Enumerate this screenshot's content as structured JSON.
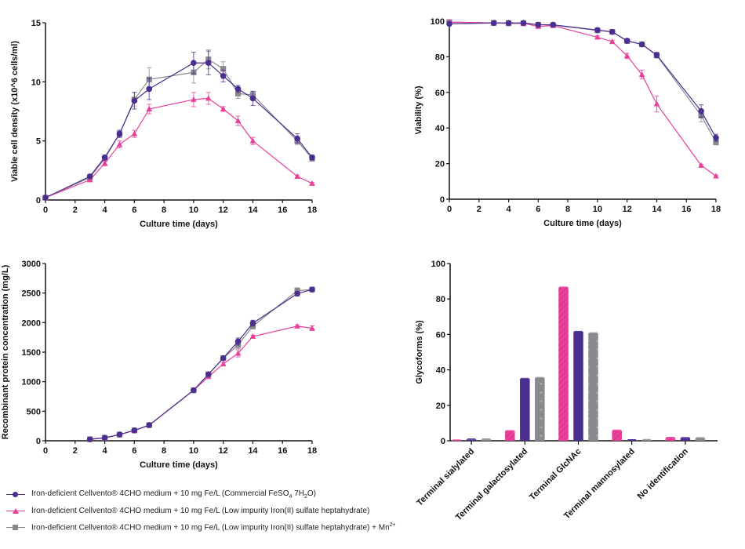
{
  "colors": {
    "commercial": "#4b2e8f",
    "low_impurity": "#e8409a",
    "low_impurity_mn": "#8a8a8e",
    "axis": "#111111"
  },
  "legend": [
    {
      "key": "commercial",
      "marker": "circle",
      "text": "Iron-deficient Cellvento® 4CHO medium + 10 mg Fe/L (Commercial FeSO",
      "sub1": "4",
      "mid": " 7H",
      "sub2": "2",
      "tail": "O)"
    },
    {
      "key": "low_impurity",
      "marker": "triangle",
      "text": "Iron-deficient Cellvento® 4CHO medium + 10 mg Fe/L (Low impurity Iron(II) sulfate heptahydrate)"
    },
    {
      "key": "low_impurity_mn",
      "marker": "square",
      "text": "Iron-deficient Cellvento® 4CHO medium + 10 mg Fe/L (Low impurity Iron(II) sulfate heptahydrate) + Mn",
      "sup": "2+"
    }
  ],
  "chart_data": [
    {
      "id": "vcd",
      "type": "line",
      "title": "",
      "xlabel": "Culture time (days)",
      "ylabel": "Viable cell density (x10^6 cells/ml)",
      "xlim": [
        0,
        18
      ],
      "ylim": [
        0,
        15
      ],
      "xticks": [
        0,
        2,
        4,
        6,
        8,
        10,
        12,
        14,
        16,
        18
      ],
      "yticks": [
        0,
        5,
        10,
        15
      ],
      "x": [
        0,
        3,
        4,
        5,
        6,
        7,
        10,
        11,
        12,
        13,
        14,
        17,
        18
      ],
      "series": [
        {
          "key": "low_impurity_mn",
          "marker": "square",
          "values": [
            0.2,
            1.9,
            3.5,
            5.6,
            8.5,
            10.2,
            10.8,
            11.9,
            11.1,
            9.0,
            8.9,
            5.0,
            3.5
          ],
          "err": [
            0.1,
            0.15,
            0.2,
            0.3,
            0.6,
            1.0,
            0.9,
            0.8,
            0.6,
            0.4,
            0.3,
            0.3,
            0.2
          ]
        },
        {
          "key": "low_impurity",
          "marker": "triangle",
          "values": [
            0.2,
            1.7,
            3.1,
            4.7,
            5.6,
            7.7,
            8.5,
            8.6,
            7.7,
            6.7,
            5.0,
            2.0,
            1.4
          ],
          "err": [
            0.1,
            0.1,
            0.2,
            0.3,
            0.3,
            0.4,
            0.6,
            0.5,
            0.2,
            0.4,
            0.3,
            0.1,
            0.1
          ]
        },
        {
          "key": "commercial",
          "marker": "circle",
          "values": [
            0.2,
            2.0,
            3.6,
            5.6,
            8.4,
            9.4,
            11.6,
            11.6,
            10.5,
            9.4,
            8.6,
            5.2,
            3.6
          ],
          "err": [
            0.1,
            0.15,
            0.2,
            0.3,
            0.7,
            0.9,
            0.9,
            1.0,
            0.5,
            0.3,
            0.6,
            0.4,
            0.2
          ]
        }
      ]
    },
    {
      "id": "viability",
      "type": "line",
      "title": "",
      "xlabel": "Culture time (days)",
      "ylabel": "Viability (%)",
      "xlim": [
        0,
        18
      ],
      "ylim": [
        0,
        100
      ],
      "xticks": [
        0,
        2,
        4,
        6,
        8,
        10,
        12,
        14,
        16,
        18
      ],
      "yticks": [
        0,
        20,
        40,
        60,
        80,
        100
      ],
      "x": [
        0,
        3,
        4,
        5,
        6,
        7,
        10,
        11,
        12,
        13,
        14,
        17,
        18
      ],
      "series": [
        {
          "key": "low_impurity_mn",
          "marker": "square",
          "values": [
            99.5,
            99.0,
            98.8,
            98.8,
            98.0,
            97.8,
            94.8,
            94.0,
            88.8,
            87.0,
            80.8,
            47.0,
            32.0
          ],
          "err": [
            0.5,
            0.5,
            0.5,
            0.8,
            0.8,
            0.5,
            0.5,
            0.8,
            0.8,
            0.8,
            1.5,
            3.5,
            1.5
          ]
        },
        {
          "key": "low_impurity",
          "marker": "triangle",
          "values": [
            99.5,
            99.0,
            98.8,
            98.8,
            97.0,
            97.5,
            91.0,
            88.5,
            80.5,
            70.0,
            53.5,
            19.0,
            13.0
          ],
          "err": [
            0.5,
            0.5,
            0.5,
            0.5,
            0.8,
            0.5,
            0.8,
            0.8,
            1.5,
            2.5,
            4.5,
            0.5,
            0.5
          ]
        },
        {
          "key": "commercial",
          "marker": "circle",
          "values": [
            98.5,
            99.0,
            99.0,
            99.0,
            98.0,
            98.0,
            95.0,
            94.0,
            89.0,
            87.0,
            81.0,
            49.5,
            34.5
          ],
          "err": [
            0.5,
            0.5,
            0.5,
            0.8,
            0.8,
            0.5,
            0.5,
            0.8,
            0.8,
            0.8,
            1.5,
            3.5,
            2.0
          ]
        }
      ]
    },
    {
      "id": "titer",
      "type": "line",
      "title": "",
      "xlabel": "Culture time (days)",
      "ylabel": "Recombinant protein concentration (mg/L)",
      "xlim": [
        0,
        18
      ],
      "ylim": [
        0,
        3000
      ],
      "xticks": [
        0,
        2,
        4,
        6,
        8,
        10,
        12,
        14,
        16,
        18
      ],
      "yticks": [
        0,
        500,
        1000,
        1500,
        2000,
        2500,
        3000
      ],
      "x": [
        3,
        4,
        5,
        6,
        7,
        10,
        11,
        12,
        13,
        14,
        17,
        18
      ],
      "series": [
        {
          "key": "low_impurity_mn",
          "marker": "square",
          "values": [
            25,
            50,
            105,
            175,
            265,
            855,
            1125,
            1395,
            1620,
            1940,
            2540,
            2560
          ],
          "err": [
            5,
            5,
            10,
            10,
            15,
            20,
            25,
            25,
            60,
            50,
            50,
            25
          ]
        },
        {
          "key": "low_impurity",
          "marker": "triangle",
          "values": [
            25,
            50,
            105,
            175,
            265,
            855,
            1085,
            1300,
            1480,
            1765,
            1940,
            1905
          ],
          "err": [
            5,
            5,
            10,
            10,
            15,
            20,
            25,
            25,
            60,
            20,
            20,
            40
          ]
        },
        {
          "key": "commercial",
          "marker": "circle",
          "values": [
            25,
            50,
            105,
            175,
            265,
            855,
            1125,
            1400,
            1680,
            1990,
            2490,
            2560
          ],
          "err": [
            5,
            5,
            10,
            10,
            15,
            20,
            25,
            25,
            60,
            50,
            40,
            25
          ]
        }
      ]
    },
    {
      "id": "glycoforms",
      "type": "bar",
      "title": "",
      "xlabel": "",
      "ylabel": "Glycoforms (%)",
      "ylim": [
        0,
        100
      ],
      "yticks": [
        0,
        20,
        40,
        60,
        80,
        100
      ],
      "categories": [
        "Terminal sialylated",
        "Terminal galactosylated",
        "Terminal GlcNAc",
        "Terminal mannosylated",
        "No identification"
      ],
      "series": [
        {
          "key": "low_impurity",
          "pattern": "hatch",
          "values": [
            0.2,
            5.5,
            86.5,
            5.8,
            1.7
          ]
        },
        {
          "key": "commercial",
          "pattern": "solid",
          "values": [
            0.8,
            35.0,
            61.5,
            0.4,
            1.6
          ]
        },
        {
          "key": "low_impurity_mn",
          "pattern": "dots",
          "values": [
            0.8,
            35.5,
            60.7,
            0.5,
            1.5
          ]
        }
      ]
    }
  ]
}
